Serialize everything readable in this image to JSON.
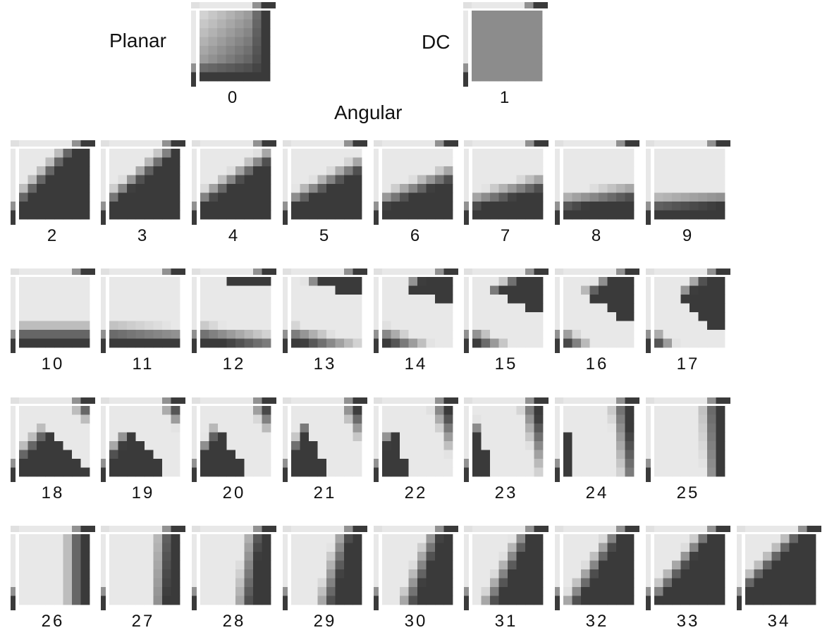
{
  "labels": {
    "planar": "Planar",
    "dc": "DC",
    "angular": "Angular"
  },
  "modes": {
    "planar": {
      "number": "0"
    },
    "dc": {
      "number": "1"
    },
    "angular": [
      "2",
      "3",
      "4",
      "5",
      "6",
      "7",
      "8",
      "9",
      "10",
      "11",
      "12",
      "13",
      "14",
      "15",
      "16",
      "17",
      "18",
      "19",
      "20",
      "21",
      "22",
      "23",
      "24",
      "25",
      "26",
      "27",
      "28",
      "29",
      "30",
      "31",
      "32",
      "33",
      "34"
    ]
  }
}
